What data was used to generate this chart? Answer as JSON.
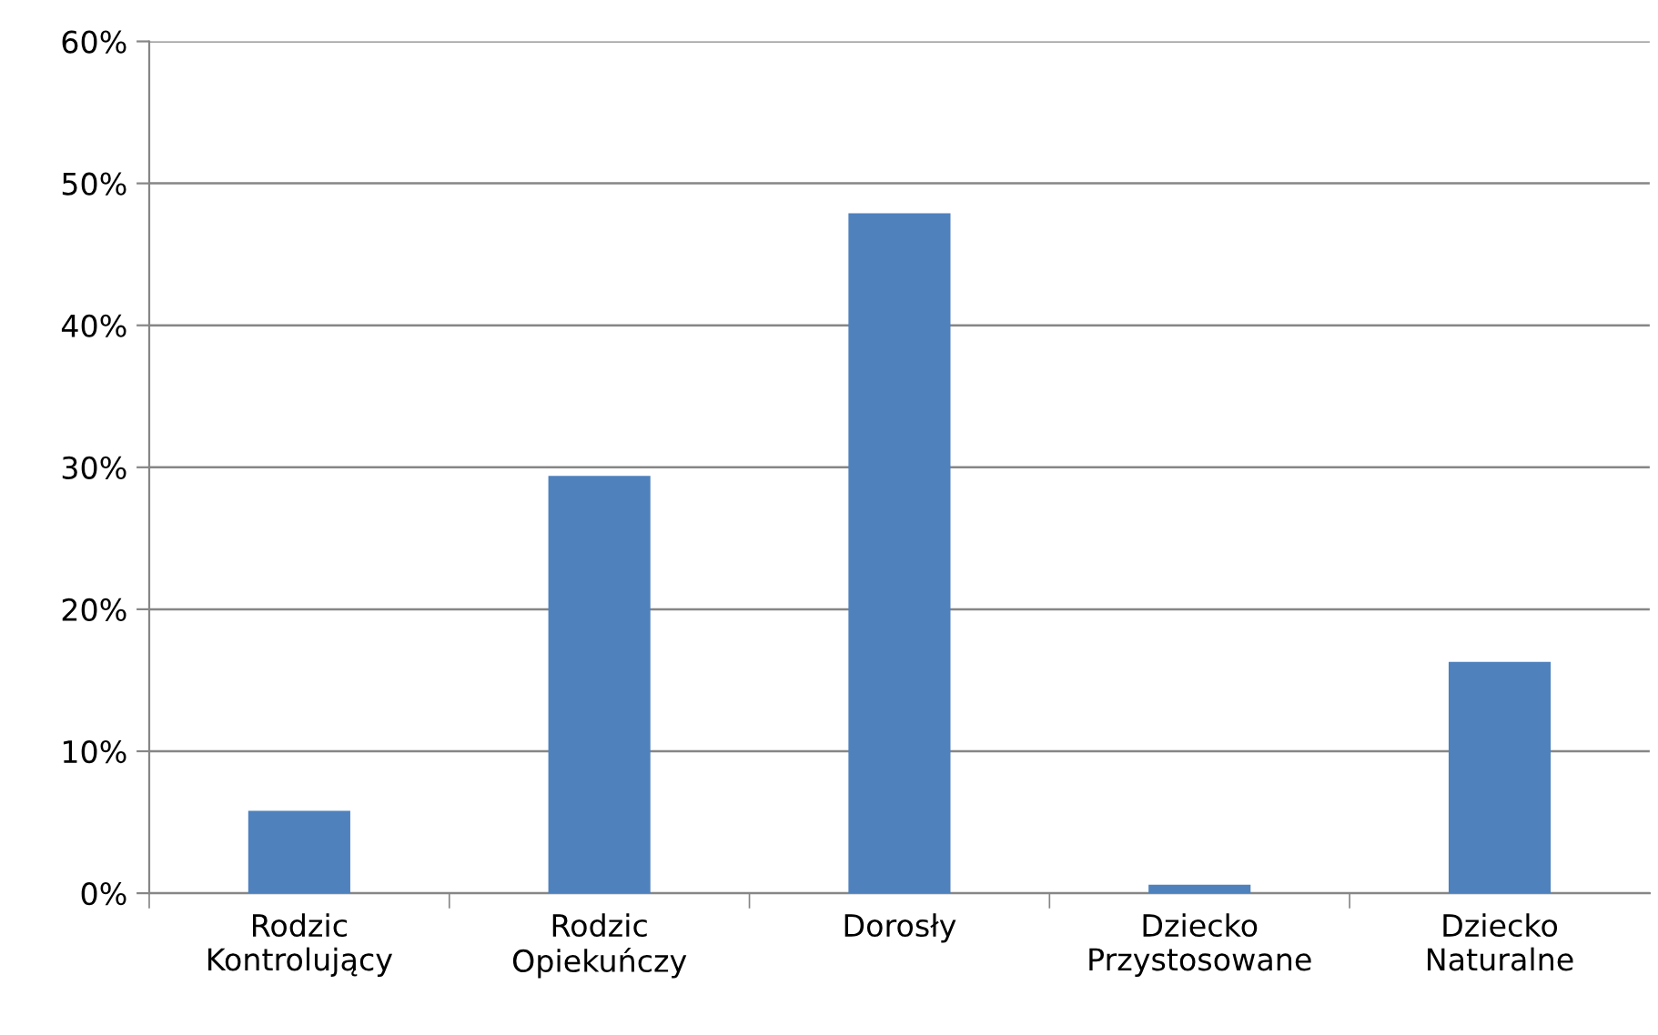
{
  "chart_data": {
    "type": "bar",
    "categories": [
      "Rodzic\nKontrolujący",
      "Rodzic\nOpiekuńczy",
      "Dorosły",
      "Dziecko\nPrzystosowane",
      "Dziecko\nNaturalne"
    ],
    "values": [
      5.8,
      29.4,
      47.9,
      0.6,
      16.3
    ],
    "color": "#4f81bd",
    "ylim": [
      0,
      60
    ],
    "yticks": [
      {
        "value": 0,
        "label": "0%"
      },
      {
        "value": 10,
        "label": "10%"
      },
      {
        "value": 20,
        "label": "20%"
      },
      {
        "value": 30,
        "label": "30%"
      },
      {
        "value": 40,
        "label": "40%"
      },
      {
        "value": 50,
        "label": "50%"
      },
      {
        "value": 60,
        "label": "60%"
      }
    ],
    "grid": "y",
    "legend": false
  }
}
